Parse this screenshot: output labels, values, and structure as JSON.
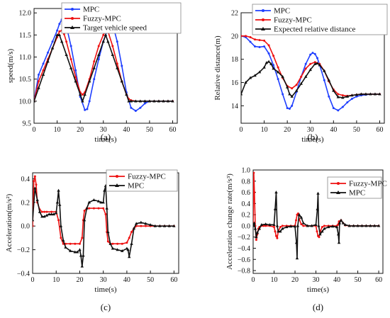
{
  "colors": {
    "blue": "#1f3fff",
    "red": "#ee1111",
    "black": "#111111"
  },
  "chart_data": [
    {
      "type": "line",
      "caption": "(a)",
      "xlabel": "time(s)",
      "ylabel": "speed(m/s)",
      "xlim": [
        0,
        62
      ],
      "ylim": [
        9.5,
        12.1
      ],
      "xticks": [
        0,
        10,
        20,
        30,
        40,
        50,
        60
      ],
      "yticks": [
        9.5,
        10.0,
        10.5,
        11.0,
        11.5,
        12.0
      ],
      "ytick_labels": [
        "9.5",
        "10.0",
        "10.5",
        "11.0",
        "11.5",
        "12.0"
      ],
      "legend_position": "top-right",
      "series": [
        {
          "name": "MPC",
          "color": "blue",
          "marker": "dot",
          "x": [
            0,
            2,
            4,
            6,
            8,
            10,
            11,
            12,
            13,
            14,
            16,
            18,
            20,
            22,
            23,
            24,
            26,
            28,
            30,
            32,
            33,
            34,
            36,
            38,
            40,
            42,
            44,
            46,
            48,
            50,
            52,
            54,
            56,
            58,
            60
          ],
          "y": [
            10.0,
            10.6,
            10.85,
            11.1,
            11.35,
            11.6,
            11.75,
            11.85,
            11.82,
            11.7,
            11.25,
            10.7,
            10.1,
            9.8,
            9.82,
            10.0,
            10.5,
            10.95,
            11.35,
            11.65,
            11.75,
            11.75,
            11.35,
            10.8,
            10.2,
            9.85,
            9.78,
            9.85,
            9.95,
            10.0,
            10.0,
            10.0,
            10.0,
            10.0,
            10.0
          ]
        },
        {
          "name": "Fuzzy-MPC",
          "color": "red",
          "marker": "dot",
          "x": [
            0,
            2,
            4,
            6,
            8,
            10,
            11,
            12,
            13,
            14,
            16,
            18,
            20,
            21,
            22,
            24,
            26,
            28,
            30,
            31,
            32,
            34,
            36,
            38,
            40,
            41,
            42,
            44,
            46,
            48,
            50,
            52,
            54,
            56,
            58,
            60
          ],
          "y": [
            10.0,
            10.45,
            10.7,
            10.95,
            11.2,
            11.45,
            11.58,
            11.6,
            11.52,
            11.35,
            10.95,
            10.55,
            10.2,
            10.15,
            10.2,
            10.5,
            10.9,
            11.25,
            11.5,
            11.6,
            11.58,
            11.25,
            10.85,
            10.45,
            10.15,
            10.05,
            10.02,
            10.0,
            10.0,
            10.0,
            10.0,
            10.0,
            10.0,
            10.0,
            10.0,
            10.0
          ]
        },
        {
          "name": "Target vehicle speed",
          "color": "black",
          "marker": "triangle",
          "x": [
            0,
            2,
            4,
            6,
            8,
            10,
            11,
            12,
            14,
            16,
            18,
            20,
            21,
            22,
            24,
            26,
            28,
            30,
            31,
            32,
            34,
            36,
            38,
            40,
            41,
            42,
            44,
            46,
            48,
            50,
            52,
            54,
            56,
            58,
            60
          ],
          "y": [
            10.0,
            10.3,
            10.6,
            10.9,
            11.2,
            11.5,
            11.5,
            11.35,
            11.05,
            10.75,
            10.45,
            10.15,
            10.0,
            10.15,
            10.45,
            10.75,
            11.05,
            11.35,
            11.5,
            11.35,
            11.05,
            10.75,
            10.45,
            10.15,
            10.0,
            10.0,
            10.0,
            10.0,
            10.0,
            10.0,
            10.0,
            10.0,
            10.0,
            10.0,
            10.0
          ]
        }
      ]
    },
    {
      "type": "line",
      "caption": "(b)",
      "xlabel": "time(s)",
      "ylabel": "Relative distance(m)",
      "xlim": [
        0,
        62
      ],
      "ylim": [
        12.5,
        22
      ],
      "xticks": [
        0,
        10,
        20,
        30,
        40,
        50,
        60
      ],
      "yticks": [
        14,
        16,
        18,
        20,
        22
      ],
      "legend_position": "top-right",
      "series": [
        {
          "name": "MPC",
          "color": "blue",
          "marker": "dot",
          "x": [
            0,
            2,
            4,
            6,
            8,
            10,
            12,
            14,
            16,
            18,
            20,
            21,
            22,
            24,
            26,
            28,
            30,
            31,
            32,
            33,
            34,
            36,
            38,
            40,
            42,
            44,
            46,
            48,
            50,
            52,
            54,
            56,
            58,
            60
          ],
          "y": [
            20.0,
            19.9,
            19.5,
            19.1,
            19.05,
            19.1,
            18.5,
            17.5,
            16.3,
            15.0,
            13.8,
            13.75,
            14.0,
            15.2,
            16.5,
            17.6,
            18.4,
            18.55,
            18.45,
            18.1,
            17.5,
            16.2,
            14.8,
            13.8,
            13.6,
            13.9,
            14.3,
            14.6,
            14.8,
            14.9,
            14.95,
            15.0,
            15.0,
            15.0
          ]
        },
        {
          "name": "Fuzzy-MPC",
          "color": "red",
          "marker": "dot",
          "x": [
            0,
            2,
            4,
            6,
            8,
            10,
            12,
            14,
            16,
            18,
            20,
            22,
            24,
            26,
            28,
            30,
            32,
            34,
            36,
            38,
            40,
            42,
            44,
            46,
            48,
            50,
            52,
            54,
            56,
            58,
            60
          ],
          "y": [
            20.0,
            20.0,
            19.9,
            19.7,
            19.65,
            19.6,
            19.2,
            18.3,
            17.3,
            16.4,
            15.7,
            15.5,
            15.8,
            16.5,
            17.2,
            17.6,
            17.75,
            17.6,
            17.0,
            16.1,
            15.4,
            15.0,
            14.9,
            14.85,
            14.9,
            14.95,
            15.0,
            15.0,
            15.0,
            15.0,
            15.0
          ]
        },
        {
          "name": "Expected relative distance",
          "color": "black",
          "marker": "triangle",
          "x": [
            0,
            2,
            4,
            6,
            8,
            10,
            11,
            12,
            13,
            14,
            16,
            18,
            20,
            21,
            22,
            24,
            26,
            28,
            30,
            32,
            33,
            34,
            36,
            38,
            40,
            42,
            44,
            46,
            48,
            50,
            52,
            54,
            56,
            58,
            60
          ],
          "y": [
            15.0,
            16.0,
            16.4,
            16.6,
            16.9,
            17.3,
            17.7,
            17.8,
            17.6,
            17.2,
            16.9,
            16.5,
            15.6,
            15.0,
            14.8,
            15.3,
            15.9,
            16.5,
            17.1,
            17.6,
            17.65,
            17.5,
            17.0,
            16.2,
            15.3,
            14.75,
            14.7,
            14.8,
            14.9,
            14.95,
            15.0,
            15.0,
            15.0,
            15.0,
            15.0
          ]
        }
      ]
    },
    {
      "type": "line",
      "caption": "(c)",
      "xlabel": "time(s)",
      "ylabel": "Acceleration(m/s²)",
      "xlim": [
        0,
        62
      ],
      "ylim": [
        -0.4,
        0.45
      ],
      "xticks": [
        0,
        10,
        20,
        30,
        40,
        50,
        60
      ],
      "yticks": [
        -0.4,
        -0.2,
        0.0,
        0.2,
        0.4
      ],
      "ytick_labels": [
        "−0.4",
        "−0.2",
        "0.0",
        "0.2",
        "0.4"
      ],
      "legend_position": "top-right",
      "series": [
        {
          "name": "Fuzzy-MPC",
          "color": "red",
          "marker": "dot",
          "x": [
            0,
            0.5,
            1,
            1.5,
            2,
            3,
            4,
            5,
            6,
            8,
            10,
            11,
            12,
            13,
            14,
            16,
            18,
            20,
            21,
            21.5,
            22,
            23,
            24,
            26,
            28,
            30,
            31,
            31.5,
            32,
            33,
            34,
            36,
            38,
            40,
            41,
            42,
            43,
            44,
            46,
            48,
            50,
            52,
            54,
            56,
            58,
            60
          ],
          "y": [
            0.0,
            0.38,
            0.42,
            0.35,
            0.2,
            0.14,
            0.12,
            0.12,
            0.12,
            0.12,
            0.12,
            0.05,
            -0.1,
            -0.15,
            -0.15,
            -0.15,
            -0.15,
            -0.15,
            -0.1,
            0.05,
            0.13,
            0.15,
            0.15,
            0.15,
            0.15,
            0.15,
            0.1,
            -0.05,
            -0.13,
            -0.15,
            -0.15,
            -0.15,
            -0.15,
            -0.14,
            -0.1,
            -0.05,
            -0.02,
            0.0,
            0.0,
            0.0,
            0.0,
            0.0,
            0.0,
            0.0,
            0.0,
            0.0
          ]
        },
        {
          "name": "MPC",
          "color": "black",
          "marker": "triangle",
          "x": [
            0,
            1,
            2,
            3,
            4,
            5,
            6,
            7,
            8,
            9,
            10,
            10.5,
            11,
            11.5,
            12,
            13,
            14,
            16,
            18,
            19,
            20,
            20.5,
            21,
            21.5,
            22,
            23,
            24,
            26,
            28,
            29,
            30,
            30.5,
            31,
            31.5,
            32,
            33,
            34,
            36,
            38,
            40,
            40.5,
            41,
            42,
            43,
            44,
            46,
            48,
            50,
            52,
            54,
            56,
            58,
            60
          ],
          "y": [
            0.05,
            0.32,
            0.22,
            0.12,
            0.08,
            0.08,
            0.09,
            0.1,
            0.1,
            0.1,
            0.11,
            0.2,
            0.3,
            0.18,
            0.0,
            -0.12,
            -0.18,
            -0.21,
            -0.22,
            -0.22,
            -0.2,
            -0.25,
            -0.34,
            -0.25,
            0.05,
            0.15,
            0.2,
            0.22,
            0.21,
            0.2,
            0.2,
            0.3,
            0.34,
            0.15,
            -0.05,
            -0.15,
            -0.19,
            -0.2,
            -0.21,
            -0.19,
            -0.2,
            -0.26,
            -0.15,
            -0.02,
            0.02,
            0.03,
            0.02,
            0.01,
            0.0,
            0.0,
            0.0,
            0.0,
            0.0
          ]
        }
      ]
    },
    {
      "type": "line",
      "caption": "(d)",
      "xlabel": "time(s)",
      "ylabel": "Acceleration change rate(m/s³)",
      "xlim": [
        0,
        62
      ],
      "ylim": [
        -0.85,
        1.0
      ],
      "xticks": [
        0,
        10,
        20,
        30,
        40,
        50,
        60
      ],
      "yticks": [
        -0.8,
        -0.6,
        -0.4,
        -0.2,
        0.0,
        0.2,
        0.4,
        0.6,
        0.8,
        1.0
      ],
      "ytick_labels": [
        "−0.8",
        "−0.6",
        "−0.4",
        "−0.2",
        "0.0",
        "0.2",
        "0.4",
        "0.6",
        "0.8",
        "1.0"
      ],
      "legend_position": "top-right",
      "series": [
        {
          "name": "Fuzzy-MPC",
          "color": "red",
          "marker": "dot",
          "x": [
            0,
            0.3,
            0.6,
            1,
            1.5,
            2,
            2.5,
            3,
            4,
            5,
            6,
            8,
            10,
            10.5,
            11,
            11.5,
            12,
            13,
            14,
            16,
            18,
            20,
            20.5,
            21,
            21.5,
            22,
            23,
            24,
            26,
            28,
            30,
            30.5,
            31,
            31.5,
            32,
            33,
            34,
            36,
            38,
            40,
            40.5,
            41,
            42,
            43,
            44,
            46,
            48,
            50,
            52,
            54,
            56,
            58,
            60
          ],
          "y": [
            0.0,
            0.95,
            0.6,
            0.0,
            -0.25,
            -0.15,
            -0.05,
            -0.02,
            0.0,
            0.0,
            0.0,
            0.0,
            -0.02,
            -0.1,
            -0.18,
            -0.22,
            -0.1,
            -0.02,
            0.0,
            0.0,
            0.0,
            0.0,
            0.1,
            0.2,
            0.22,
            0.12,
            0.03,
            0.0,
            0.0,
            0.0,
            0.0,
            -0.1,
            -0.18,
            -0.2,
            -0.1,
            -0.02,
            0.0,
            0.0,
            0.0,
            0.0,
            0.02,
            0.08,
            0.1,
            0.05,
            0.01,
            0.0,
            0.0,
            0.0,
            0.0,
            0.0,
            0.0,
            0.0,
            0.0
          ]
        },
        {
          "name": "MPC",
          "color": "black",
          "marker": "triangle",
          "x": [
            0,
            0.5,
            1,
            1.5,
            2,
            3,
            4,
            6,
            8,
            10,
            10.5,
            11,
            11.5,
            12,
            13,
            14,
            16,
            18,
            20,
            20.7,
            21,
            21.3,
            22,
            23,
            24,
            26,
            28,
            30,
            30.7,
            31,
            31.3,
            32,
            33,
            34,
            36,
            38,
            40,
            40.7,
            41,
            41.3,
            42,
            43,
            44,
            46,
            48,
            50,
            52,
            54,
            56,
            58,
            60
          ],
          "y": [
            0.0,
            0.05,
            -0.05,
            -0.2,
            -0.12,
            -0.05,
            0.02,
            0.03,
            0.02,
            0.02,
            0.3,
            0.6,
            0.0,
            -0.1,
            -0.1,
            -0.05,
            -0.02,
            -0.01,
            -0.01,
            -0.3,
            -0.58,
            0.0,
            0.2,
            0.15,
            0.05,
            0.0,
            0.0,
            0.02,
            0.3,
            0.58,
            0.0,
            -0.15,
            -0.1,
            -0.05,
            -0.02,
            -0.01,
            -0.02,
            -0.15,
            -0.3,
            0.05,
            0.1,
            0.05,
            0.02,
            0.0,
            0.0,
            0.0,
            0.0,
            0.0,
            0.0,
            0.0,
            0.0
          ]
        }
      ]
    }
  ]
}
